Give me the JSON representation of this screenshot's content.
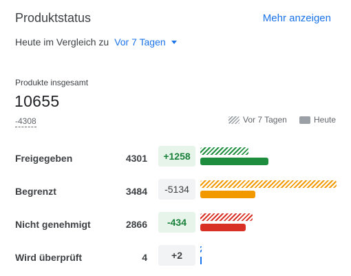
{
  "header": {
    "title": "Produktstatus",
    "more_label": "Mehr anzeigen"
  },
  "compare": {
    "prefix": "Heute im Vergleich zu",
    "selected": "Vor 7 Tagen"
  },
  "total": {
    "label": "Produkte insgesamt",
    "value": "10655",
    "delta": "-4308"
  },
  "legend": {
    "previous": "Vor 7 Tagen",
    "today": "Heute"
  },
  "chart_data": {
    "type": "bar",
    "categories": [
      "Freigegeben",
      "Begrenzt",
      "Nicht genehmigt",
      "Wird überprüft"
    ],
    "series": [
      {
        "name": "Vor 7 Tagen",
        "values": [
          3043,
          8618,
          3300,
          2
        ]
      },
      {
        "name": "Heute",
        "values": [
          4301,
          3484,
          2866,
          4
        ]
      }
    ],
    "colors": [
      "#1e8e3e",
      "#f29900",
      "#d93025",
      "#1a73e8"
    ]
  },
  "rows": [
    {
      "label": "Freigegeben",
      "count": "4301",
      "delta": "+1258",
      "tone": "delta-pos"
    },
    {
      "label": "Begrenzt",
      "count": "3484",
      "delta": "-5134",
      "tone": "delta-neg"
    },
    {
      "label": "Nicht genehmigt",
      "count": "2866",
      "delta": "-434",
      "tone": "delta-neg-green"
    },
    {
      "label": "Wird überprüft",
      "count": "4",
      "delta": "+2",
      "tone": "delta-neutral"
    }
  ]
}
